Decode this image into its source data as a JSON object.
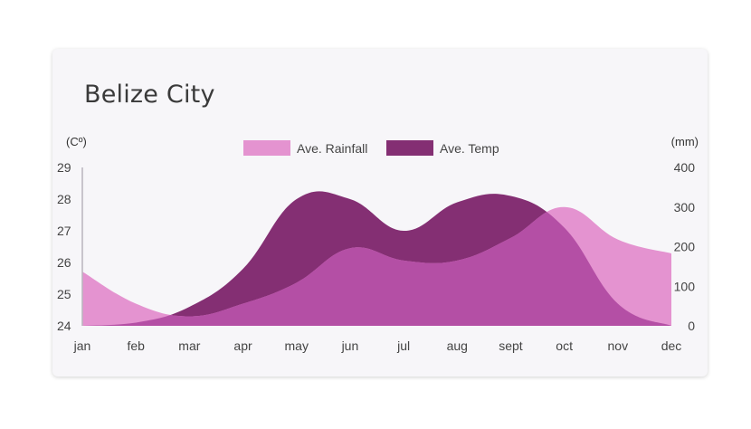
{
  "chart_data": {
    "type": "area",
    "title": "Belize City",
    "categories": [
      "jan",
      "feb",
      "mar",
      "apr",
      "may",
      "jun",
      "jul",
      "aug",
      "sept",
      "oct",
      "nov",
      "dec"
    ],
    "y_left": {
      "label": "(Cº)",
      "range": [
        24,
        29
      ],
      "ticks": [
        "24",
        "25",
        "26",
        "27",
        "28",
        "29"
      ]
    },
    "y_right": {
      "label": "(mm)",
      "range": [
        0,
        400
      ],
      "ticks": [
        "0",
        "100",
        "200",
        "300",
        "400"
      ]
    },
    "legend_position": "top-center",
    "series": [
      {
        "name": "Ave. Rainfall",
        "axis": "right",
        "color": "#e493d0",
        "values": [
          137,
          56,
          24,
          56,
          109,
          196,
          165,
          165,
          222,
          300,
          218,
          183
        ]
      },
      {
        "name": "Ave. Temp",
        "axis": "left",
        "color": "#842f73",
        "values": [
          24.0,
          24.1,
          24.6,
          25.8,
          28.0,
          28.0,
          27.0,
          27.9,
          28.1,
          27.1,
          24.7,
          24.0
        ]
      }
    ],
    "overlap_color": "#b44fa5"
  }
}
